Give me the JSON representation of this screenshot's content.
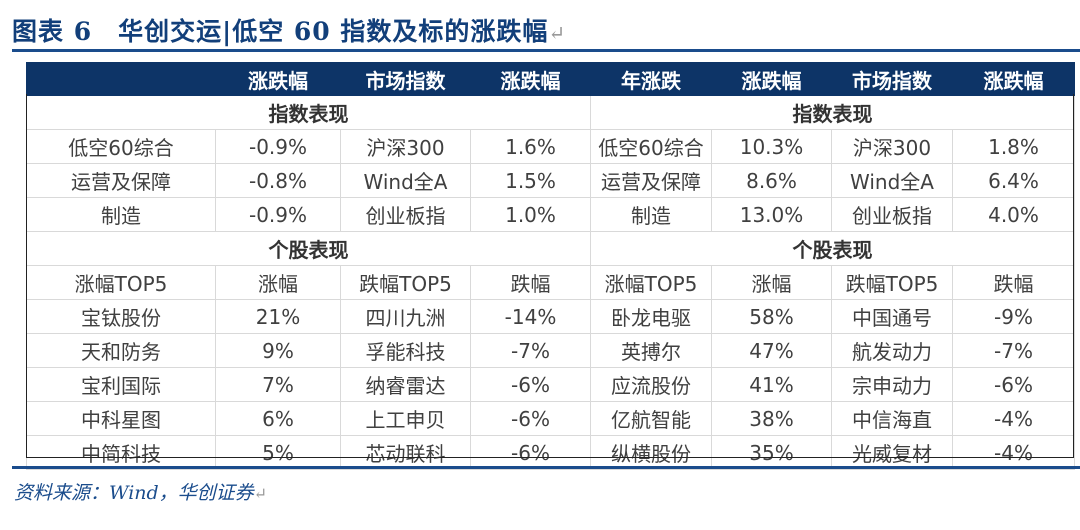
{
  "title": "图表 6　华创交运|低空 60 指数及标的涨跌幅",
  "header": {
    "left": [
      "",
      "涨跌幅",
      "市场指数",
      "涨跌幅"
    ],
    "right": [
      "年涨跌",
      "涨跌幅",
      "市场指数",
      "涨跌幅"
    ]
  },
  "sections": {
    "index": "指数表现",
    "stocks": "个股表现"
  },
  "index_rows": [
    [
      "低空60综合",
      "-0.9%",
      "沪深300",
      "1.6%",
      "低空60综合",
      "10.3%",
      "沪深300",
      "1.8%"
    ],
    [
      "运营及保障",
      "-0.8%",
      "Wind全A",
      "1.5%",
      "运营及保障",
      "8.6%",
      "Wind全A",
      "6.4%"
    ],
    [
      "制造",
      "-0.9%",
      "创业板指",
      "1.0%",
      "制造",
      "13.0%",
      "创业板指",
      "4.0%"
    ]
  ],
  "stock_header": [
    "涨幅TOP5",
    "涨幅",
    "跌幅TOP5",
    "跌幅",
    "涨幅TOP5",
    "涨幅",
    "跌幅TOP5",
    "跌幅"
  ],
  "stock_rows": [
    [
      "宝钛股份",
      "21%",
      "四川九洲",
      "-14%",
      "卧龙电驱",
      "58%",
      "中国通号",
      "-9%"
    ],
    [
      "天和防务",
      "9%",
      "孚能科技",
      "-7%",
      "英搏尔",
      "47%",
      "航发动力",
      "-7%"
    ],
    [
      "宝利国际",
      "7%",
      "纳睿雷达",
      "-6%",
      "应流股份",
      "41%",
      "宗申动力",
      "-6%"
    ],
    [
      "中科星图",
      "6%",
      "上工申贝",
      "-6%",
      "亿航智能",
      "38%",
      "中信海直",
      "-4%"
    ],
    [
      "中简科技",
      "5%",
      "芯动联科",
      "-6%",
      "纵横股份",
      "35%",
      "光威复材",
      "-4%"
    ]
  ],
  "source": "资料来源：Wind，华创证券",
  "colors": {
    "header_bg": "#0d3467",
    "title": "#123f7a",
    "rule": "#1a4c8c"
  }
}
